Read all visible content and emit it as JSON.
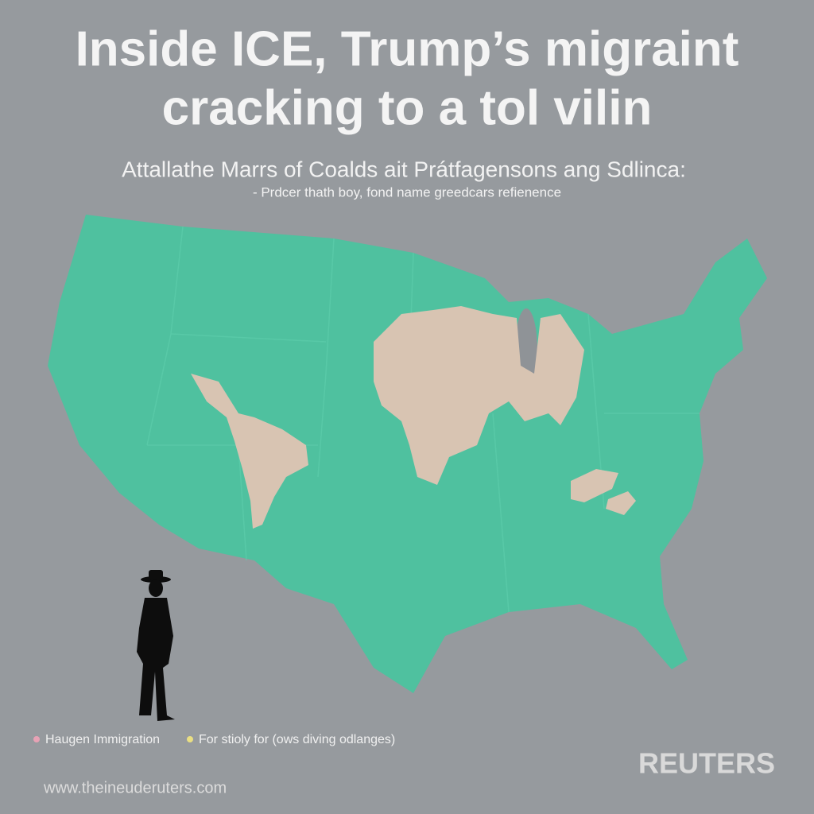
{
  "header": {
    "title_lines": [
      "Inside ICE, Trump’s migraint",
      "cracking to a tol vilin"
    ],
    "subtitle": "Attallathe Marrs of Coalds ait Prátfagensons ang Sdlinca:",
    "note": "- Prdcer thath boy, fond name greedcars refienence"
  },
  "legend": {
    "items": [
      "Haugen Immigration",
      "For stioly for (ows diving odlanges)"
    ]
  },
  "footer": {
    "brand": "REUTERS",
    "url": "www.theineuderuters.com"
  }
}
